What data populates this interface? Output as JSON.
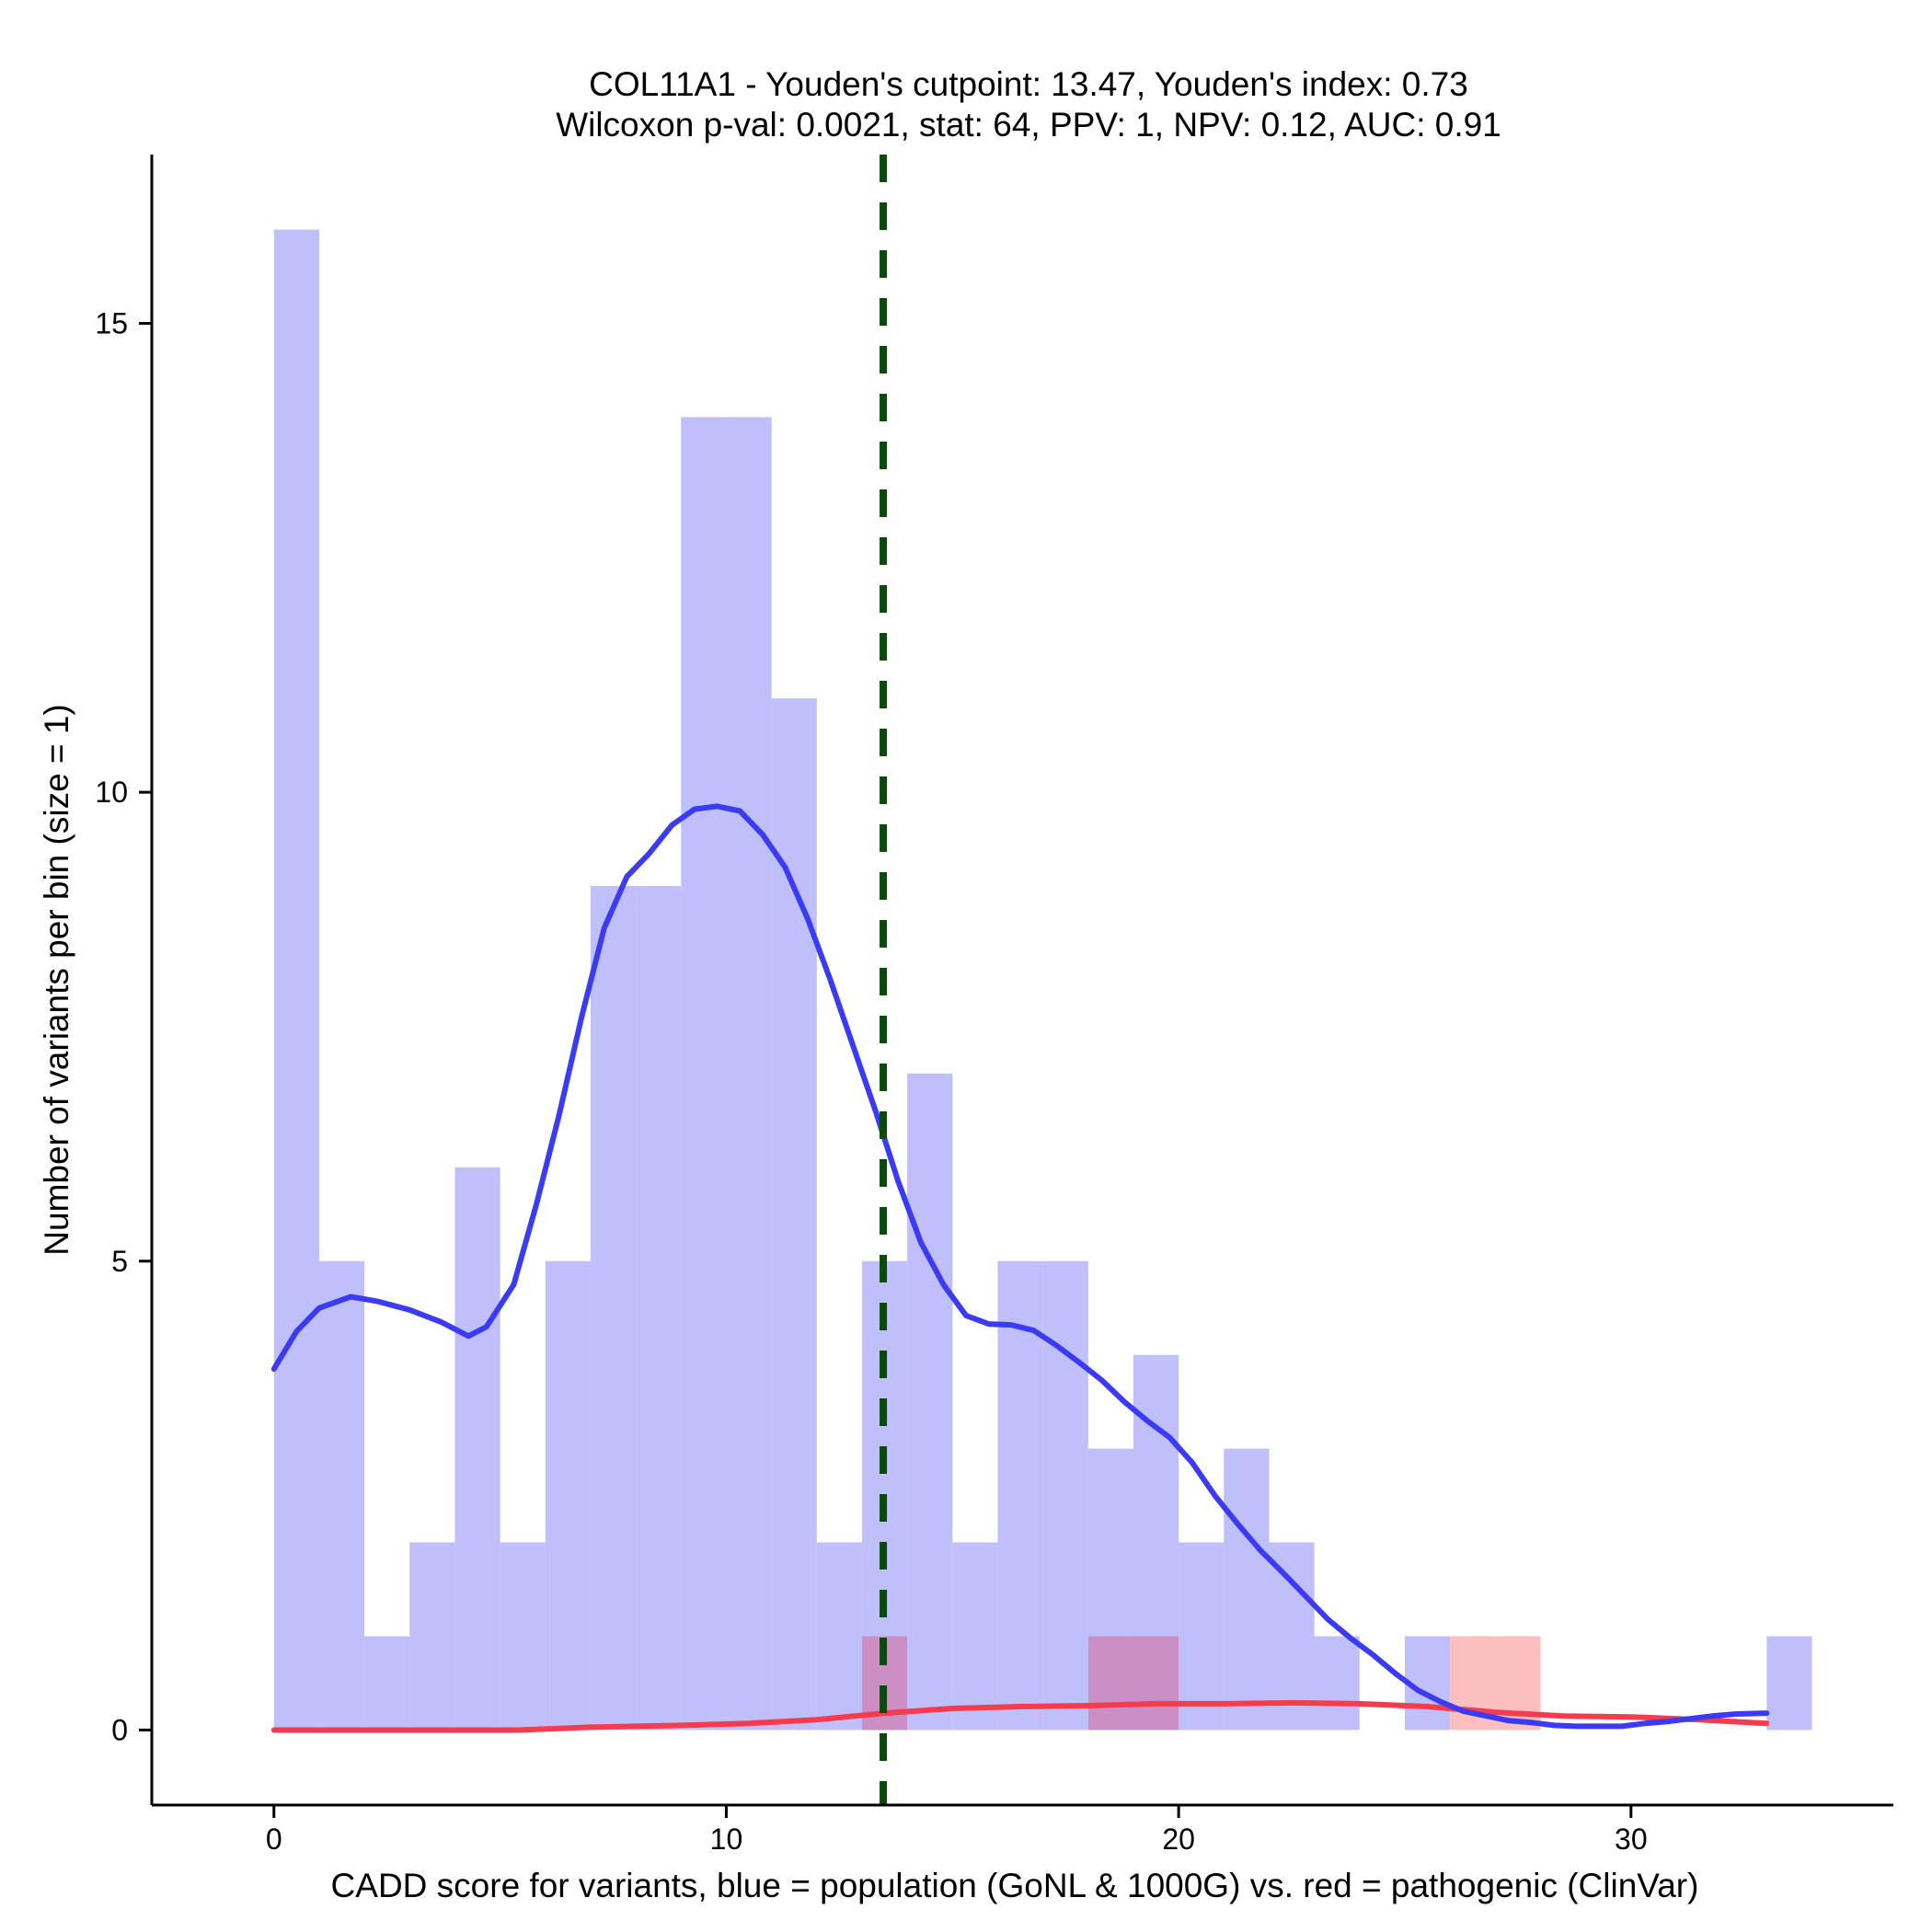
{
  "chart_data": {
    "type": "histogram",
    "title_line1": "COL11A1 - Youden's cutpoint: 13.47, Youden's index: 0.73",
    "title_line2": "Wilcoxon p-val: 0.0021, stat: 64, PPV: 1, NPV: 0.12, AUC: 0.91",
    "xlabel": "CADD score for variants, blue = population (GoNL & 1000G) vs. red = pathogenic (ClinVar)",
    "ylabel": "Number of variants per bin (size = 1)",
    "xlim": [
      -2.7,
      35.8
    ],
    "ylim": [
      -0.8,
      16.8
    ],
    "x_ticks": [
      0,
      10,
      20,
      30
    ],
    "x_tick_labels": [
      "0",
      "10",
      "20",
      "30"
    ],
    "y_ticks": [
      0,
      5,
      10,
      15
    ],
    "y_tick_labels": [
      "0",
      "5",
      "10",
      "15"
    ],
    "bin_width": 1,
    "cutpoint": 13.47,
    "colors": {
      "population_bar": "#bfbffc",
      "pathogenic_bar": "#fcbfbf",
      "overlap_bar": "#cc8fc3",
      "population_density": "#3b3bf5",
      "pathogenic_density": "#f53b4e",
      "cutpoint_line": "#0a4a0a",
      "axis": "#000000"
    },
    "series": [
      {
        "name": "population (GoNL & 1000G)",
        "bins": [
          {
            "x0": 0,
            "count": 16
          },
          {
            "x0": 1,
            "count": 5
          },
          {
            "x0": 2,
            "count": 1
          },
          {
            "x0": 3,
            "count": 2
          },
          {
            "x0": 4,
            "count": 6
          },
          {
            "x0": 5,
            "count": 2
          },
          {
            "x0": 6,
            "count": 5
          },
          {
            "x0": 7,
            "count": 9
          },
          {
            "x0": 8,
            "count": 9
          },
          {
            "x0": 9,
            "count": 14
          },
          {
            "x0": 10,
            "count": 14
          },
          {
            "x0": 11,
            "count": 11
          },
          {
            "x0": 12,
            "count": 2
          },
          {
            "x0": 13,
            "count": 5
          },
          {
            "x0": 14,
            "count": 7
          },
          {
            "x0": 15,
            "count": 2
          },
          {
            "x0": 16,
            "count": 5
          },
          {
            "x0": 17,
            "count": 5
          },
          {
            "x0": 18,
            "count": 3
          },
          {
            "x0": 19,
            "count": 4
          },
          {
            "x0": 20,
            "count": 2
          },
          {
            "x0": 21,
            "count": 3
          },
          {
            "x0": 22,
            "count": 2
          },
          {
            "x0": 23,
            "count": 1
          },
          {
            "x0": 25,
            "count": 1
          },
          {
            "x0": 33,
            "count": 1
          }
        ],
        "density_curve": [
          [
            0,
            3.85
          ],
          [
            0.5,
            4.25
          ],
          [
            1,
            4.5
          ],
          [
            1.7,
            4.62
          ],
          [
            2.3,
            4.57
          ],
          [
            3,
            4.48
          ],
          [
            3.7,
            4.35
          ],
          [
            4.3,
            4.2
          ],
          [
            4.7,
            4.3
          ],
          [
            5.3,
            4.75
          ],
          [
            5.8,
            5.6
          ],
          [
            6.3,
            6.55
          ],
          [
            6.8,
            7.6
          ],
          [
            7.3,
            8.55
          ],
          [
            7.8,
            9.1
          ],
          [
            8.3,
            9.35
          ],
          [
            8.8,
            9.65
          ],
          [
            9.3,
            9.82
          ],
          [
            9.8,
            9.85
          ],
          [
            10.3,
            9.8
          ],
          [
            10.8,
            9.55
          ],
          [
            11.3,
            9.2
          ],
          [
            11.8,
            8.65
          ],
          [
            12.3,
            8.0
          ],
          [
            12.8,
            7.3
          ],
          [
            13.3,
            6.6
          ],
          [
            13.8,
            5.85
          ],
          [
            14.3,
            5.2
          ],
          [
            14.8,
            4.75
          ],
          [
            15.3,
            4.42
          ],
          [
            15.8,
            4.33
          ],
          [
            16.3,
            4.32
          ],
          [
            16.8,
            4.26
          ],
          [
            17.3,
            4.1
          ],
          [
            17.8,
            3.92
          ],
          [
            18.3,
            3.73
          ],
          [
            18.8,
            3.5
          ],
          [
            19.3,
            3.3
          ],
          [
            19.8,
            3.12
          ],
          [
            20.3,
            2.85
          ],
          [
            20.8,
            2.5
          ],
          [
            21.3,
            2.2
          ],
          [
            21.8,
            1.92
          ],
          [
            22.3,
            1.68
          ],
          [
            22.8,
            1.43
          ],
          [
            23.3,
            1.18
          ],
          [
            23.8,
            0.98
          ],
          [
            24.3,
            0.8
          ],
          [
            24.8,
            0.6
          ],
          [
            25.3,
            0.42
          ],
          [
            25.8,
            0.3
          ],
          [
            26.3,
            0.2
          ],
          [
            26.8,
            0.15
          ],
          [
            27.3,
            0.1
          ],
          [
            27.8,
            0.08
          ],
          [
            28.3,
            0.05
          ],
          [
            28.8,
            0.04
          ],
          [
            29.3,
            0.04
          ],
          [
            29.8,
            0.04
          ],
          [
            30.3,
            0.07
          ],
          [
            30.8,
            0.09
          ],
          [
            31.3,
            0.12
          ],
          [
            31.8,
            0.15
          ],
          [
            32.3,
            0.17
          ],
          [
            33,
            0.18
          ]
        ]
      },
      {
        "name": "pathogenic (ClinVar)",
        "bins": [
          {
            "x0": 13,
            "count": 1
          },
          {
            "x0": 18,
            "count": 1
          },
          {
            "x0": 19,
            "count": 1
          },
          {
            "x0": 26,
            "count": 1
          },
          {
            "x0": 27,
            "count": 1
          }
        ],
        "density_curve": [
          [
            0,
            0.0
          ],
          [
            2,
            0.0
          ],
          [
            4,
            0.0
          ],
          [
            5.4,
            0.0
          ],
          [
            7,
            0.03
          ],
          [
            9,
            0.05
          ],
          [
            10.5,
            0.07
          ],
          [
            12,
            0.11
          ],
          [
            13.5,
            0.18
          ],
          [
            15,
            0.23
          ],
          [
            16.5,
            0.25
          ],
          [
            18,
            0.26
          ],
          [
            19.5,
            0.28
          ],
          [
            21,
            0.28
          ],
          [
            22.5,
            0.29
          ],
          [
            24,
            0.28
          ],
          [
            25.5,
            0.25
          ],
          [
            27,
            0.19
          ],
          [
            28.5,
            0.15
          ],
          [
            30,
            0.14
          ],
          [
            31.5,
            0.11
          ],
          [
            33,
            0.07
          ]
        ]
      }
    ]
  }
}
